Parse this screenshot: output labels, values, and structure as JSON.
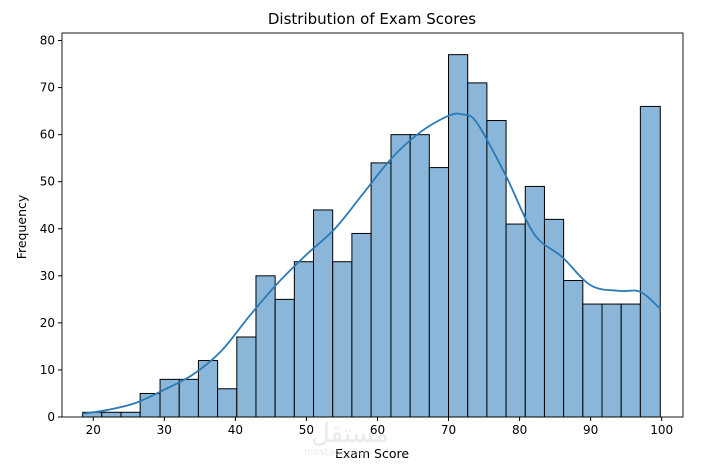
{
  "chart_data": {
    "type": "bar",
    "title": "Distribution of Exam Scores",
    "xlabel": "Exam Score",
    "ylabel": "Frequency",
    "xlim": [
      15.6,
      103.0
    ],
    "ylim": [
      0,
      81.6
    ],
    "xticks": [
      20,
      30,
      40,
      50,
      60,
      70,
      80,
      90,
      100
    ],
    "yticks": [
      0,
      10,
      20,
      30,
      40,
      50,
      60,
      70,
      80
    ],
    "bin_edges": [
      18.5,
      21.2,
      23.9,
      26.6,
      29.4,
      32.1,
      34.8,
      37.5,
      40.2,
      42.9,
      45.6,
      48.3,
      51.0,
      53.7,
      56.4,
      59.1,
      61.9,
      64.6,
      67.3,
      70.0,
      72.7,
      75.4,
      78.1,
      80.8,
      83.5,
      86.2,
      88.9,
      91.6,
      94.3,
      97.0,
      99.8
    ],
    "counts": [
      1,
      1,
      1,
      5,
      8,
      8,
      12,
      6,
      17,
      30,
      25,
      33,
      44,
      33,
      39,
      54,
      60,
      60,
      53,
      77,
      71,
      63,
      41,
      49,
      42,
      29,
      24,
      24,
      24,
      66
    ],
    "kde": {
      "x": [
        18.5,
        22,
        26,
        30,
        34,
        38,
        42,
        46,
        50,
        54,
        58,
        62,
        66,
        70,
        72,
        74,
        78,
        82,
        86,
        90,
        94,
        97,
        99.8
      ],
      "y": [
        0.7,
        1.5,
        3.0,
        5.8,
        9.0,
        14.0,
        21.5,
        28.5,
        34.5,
        40.0,
        47.5,
        55.0,
        60.5,
        64.0,
        64.3,
        62.5,
        51.5,
        39.0,
        34.0,
        28.0,
        26.8,
        26.6,
        23.0
      ]
    },
    "grid": false,
    "colors": {
      "bar_fill": "#8ab7d9",
      "bar_edge": "#000000",
      "kde_line": "#2b7ab6",
      "axis": "#000000"
    }
  },
  "watermark": {
    "text_main": "مستقل",
    "text_sub": "mostaql.com"
  }
}
